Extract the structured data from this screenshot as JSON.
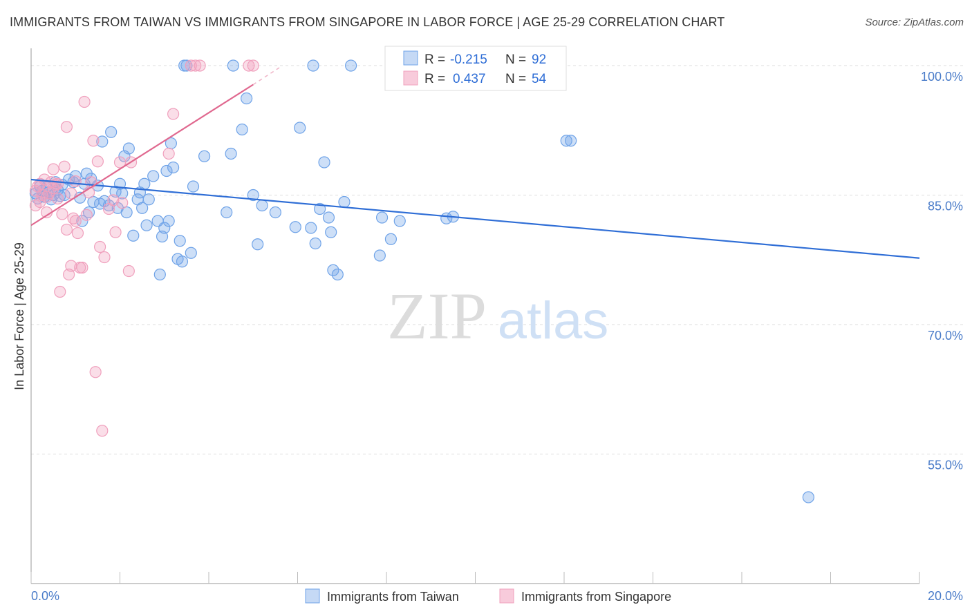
{
  "header": {
    "title": "IMMIGRANTS FROM TAIWAN VS IMMIGRANTS FROM SINGAPORE IN LABOR FORCE | AGE 25-29 CORRELATION CHART",
    "source": "Source: ZipAtlas.com"
  },
  "watermark": {
    "zip": "ZIP",
    "atlas": "atlas"
  },
  "colors": {
    "taiwan": "#6fa3e8",
    "taiwan_line": "#2f6ed6",
    "singapore": "#f0a0bd",
    "singapore_line": "#e0688f",
    "tick": "#4a7cc9",
    "grid": "#dddddd"
  },
  "chart_data": {
    "type": "scatter",
    "title": "IMMIGRANTS FROM TAIWAN VS IMMIGRANTS FROM SINGAPORE IN LABOR FORCE | AGE 25-29 CORRELATION CHART",
    "ylabel": "In Labor Force | Age 25-29",
    "xlim": [
      0,
      20
    ],
    "ylim": [
      40,
      102
    ],
    "x_ticks": [
      "0.0%",
      "20.0%"
    ],
    "y_ticks": [
      {
        "value": 100,
        "label": "100.0%"
      },
      {
        "value": 85,
        "label": "85.0%"
      },
      {
        "value": 70,
        "label": "70.0%"
      },
      {
        "value": 55,
        "label": "55.0%"
      }
    ],
    "grid": true,
    "legend": {
      "placement": "top-center",
      "entries": [
        {
          "r_label": "R =",
          "r": "-0.215",
          "n_label": "N =",
          "n": "92"
        },
        {
          "r_label": "R =",
          "r": "0.437",
          "n_label": "N =",
          "n": "54"
        }
      ]
    },
    "series": [
      {
        "name": "Immigrants from Taiwan",
        "trend": {
          "x0": 0,
          "y0": 86.8,
          "x1": 20,
          "y1": 77.7
        },
        "points": [
          [
            0.1,
            85.2
          ],
          [
            0.15,
            84.6
          ],
          [
            0.2,
            86.0
          ],
          [
            0.25,
            85.5
          ],
          [
            0.3,
            84.8
          ],
          [
            0.35,
            85.9
          ],
          [
            0.4,
            85.3
          ],
          [
            0.45,
            84.5
          ],
          [
            0.5,
            85.0
          ],
          [
            0.55,
            86.5
          ],
          [
            0.6,
            85.6
          ],
          [
            0.65,
            84.9
          ],
          [
            0.7,
            86.2
          ],
          [
            0.75,
            85.0
          ],
          [
            0.85,
            86.8
          ],
          [
            0.95,
            86.5
          ],
          [
            1.0,
            87.2
          ],
          [
            1.1,
            84.7
          ],
          [
            1.15,
            82.0
          ],
          [
            1.2,
            86.3
          ],
          [
            1.25,
            87.5
          ],
          [
            1.3,
            83.0
          ],
          [
            1.35,
            86.9
          ],
          [
            1.4,
            84.2
          ],
          [
            1.5,
            86.1
          ],
          [
            1.55,
            84.0
          ],
          [
            1.6,
            91.2
          ],
          [
            1.65,
            84.3
          ],
          [
            1.75,
            83.8
          ],
          [
            1.8,
            92.3
          ],
          [
            1.9,
            85.4
          ],
          [
            1.95,
            83.5
          ],
          [
            2.0,
            86.3
          ],
          [
            2.05,
            85.2
          ],
          [
            2.1,
            89.5
          ],
          [
            2.15,
            83.0
          ],
          [
            2.2,
            90.4
          ],
          [
            2.3,
            80.3
          ],
          [
            2.4,
            84.5
          ],
          [
            2.45,
            85.3
          ],
          [
            2.5,
            83.5
          ],
          [
            2.55,
            86.3
          ],
          [
            2.6,
            81.5
          ],
          [
            2.65,
            84.5
          ],
          [
            2.75,
            87.2
          ],
          [
            2.85,
            82.0
          ],
          [
            2.9,
            75.8
          ],
          [
            2.95,
            80.2
          ],
          [
            3.0,
            81.2
          ],
          [
            3.05,
            87.8
          ],
          [
            3.1,
            82.0
          ],
          [
            3.15,
            91.0
          ],
          [
            3.2,
            88.2
          ],
          [
            3.3,
            77.6
          ],
          [
            3.35,
            79.7
          ],
          [
            3.4,
            77.3
          ],
          [
            3.45,
            100.0
          ],
          [
            3.5,
            100.0
          ],
          [
            3.6,
            78.3
          ],
          [
            3.65,
            86.0
          ],
          [
            3.9,
            89.5
          ],
          [
            4.4,
            83.0
          ],
          [
            4.5,
            89.8
          ],
          [
            4.55,
            100.0
          ],
          [
            4.75,
            92.6
          ],
          [
            4.85,
            96.2
          ],
          [
            5.1,
            79.3
          ],
          [
            5.2,
            83.8
          ],
          [
            5.5,
            83.0
          ],
          [
            5.95,
            81.3
          ],
          [
            6.05,
            92.8
          ],
          [
            6.3,
            81.2
          ],
          [
            6.35,
            100.0
          ],
          [
            6.4,
            79.4
          ],
          [
            6.5,
            83.4
          ],
          [
            6.6,
            88.8
          ],
          [
            6.7,
            82.4
          ],
          [
            6.75,
            80.7
          ],
          [
            6.8,
            76.3
          ],
          [
            6.9,
            75.8
          ],
          [
            7.05,
            84.2
          ],
          [
            7.2,
            100.0
          ],
          [
            7.85,
            78.0
          ],
          [
            7.9,
            82.4
          ],
          [
            8.1,
            79.9
          ],
          [
            8.3,
            82.0
          ],
          [
            9.35,
            82.3
          ],
          [
            9.5,
            82.5
          ],
          [
            12.05,
            91.3
          ],
          [
            12.15,
            91.3
          ],
          [
            17.5,
            50.0
          ],
          [
            5.0,
            85.0
          ]
        ]
      },
      {
        "name": "Immigrants from Singapore",
        "trend": {
          "x0": 0,
          "y0": 81.5,
          "x1": 5.0,
          "y1": 97.8
        },
        "trend_ext": {
          "x0": 5.0,
          "y0": 97.8,
          "x1": 5.6,
          "y1": 99.8
        },
        "points": [
          [
            0.1,
            85.5
          ],
          [
            0.15,
            86.0
          ],
          [
            0.2,
            84.2
          ],
          [
            0.25,
            85.0
          ],
          [
            0.3,
            86.8
          ],
          [
            0.35,
            83.0
          ],
          [
            0.4,
            85.2
          ],
          [
            0.45,
            86.5
          ],
          [
            0.5,
            88.0
          ],
          [
            0.55,
            86.2
          ],
          [
            0.6,
            84.6
          ],
          [
            0.65,
            73.8
          ],
          [
            0.7,
            82.8
          ],
          [
            0.75,
            88.3
          ],
          [
            0.8,
            81.0
          ],
          [
            0.8,
            92.9
          ],
          [
            0.85,
            75.8
          ],
          [
            0.9,
            76.8
          ],
          [
            0.95,
            82.3
          ],
          [
            1.0,
            82.0
          ],
          [
            1.05,
            80.6
          ],
          [
            1.1,
            76.6
          ],
          [
            1.15,
            76.6
          ],
          [
            1.2,
            95.8
          ],
          [
            1.25,
            82.7
          ],
          [
            1.3,
            85.3
          ],
          [
            1.35,
            86.5
          ],
          [
            1.4,
            91.3
          ],
          [
            1.45,
            64.5
          ],
          [
            1.5,
            88.9
          ],
          [
            1.55,
            79.0
          ],
          [
            1.6,
            57.7
          ],
          [
            1.65,
            77.8
          ],
          [
            1.75,
            83.4
          ],
          [
            1.85,
            84.4
          ],
          [
            1.9,
            80.7
          ],
          [
            2.0,
            88.8
          ],
          [
            2.05,
            84.1
          ],
          [
            2.2,
            76.2
          ],
          [
            2.25,
            88.8
          ],
          [
            3.1,
            89.8
          ],
          [
            3.2,
            94.4
          ],
          [
            3.6,
            100.0
          ],
          [
            3.7,
            100.0
          ],
          [
            3.8,
            100.0
          ],
          [
            4.9,
            100.0
          ],
          [
            5.0,
            100.0
          ],
          [
            0.1,
            83.8
          ],
          [
            0.2,
            86.3
          ],
          [
            0.35,
            84.8
          ],
          [
            0.5,
            85.8
          ],
          [
            0.6,
            86.3
          ],
          [
            0.9,
            85.2
          ],
          [
            1.0,
            86.6
          ]
        ]
      }
    ]
  }
}
